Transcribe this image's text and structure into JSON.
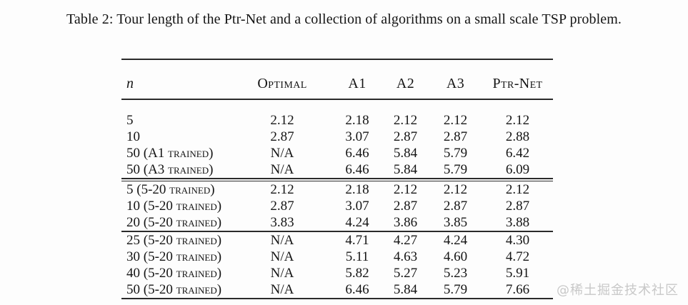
{
  "caption": "Table 2: Tour length of the Ptr-Net and a collection of algorithms on a small scale TSP problem.",
  "watermark": "@稀土掘金技术社区",
  "table": {
    "columns": [
      "n",
      "Optimal",
      "A1",
      "A2",
      "A3",
      "Ptr-Net"
    ],
    "groups": [
      {
        "rows": [
          {
            "label": "5",
            "values": [
              "2.12",
              "2.18",
              "2.12",
              "2.12",
              "2.12"
            ]
          },
          {
            "label": "10",
            "values": [
              "2.87",
              "3.07",
              "2.87",
              "2.87",
              "2.88"
            ]
          },
          {
            "label": "50 (A1 trained)",
            "values": [
              "N/A",
              "6.46",
              "5.84",
              "5.79",
              "6.42"
            ]
          },
          {
            "label": "50 (A3 trained)",
            "values": [
              "N/A",
              "6.46",
              "5.84",
              "5.79",
              "6.09"
            ]
          }
        ]
      },
      {
        "rows": [
          {
            "label": "5 (5-20 trained)",
            "values": [
              "2.12",
              "2.18",
              "2.12",
              "2.12",
              "2.12"
            ]
          },
          {
            "label": "10 (5-20 trained)",
            "values": [
              "2.87",
              "3.07",
              "2.87",
              "2.87",
              "2.87"
            ]
          },
          {
            "label": "20 (5-20 trained)",
            "values": [
              "3.83",
              "4.24",
              "3.86",
              "3.85",
              "3.88"
            ]
          }
        ]
      },
      {
        "rows": [
          {
            "label": "25 (5-20 trained)",
            "values": [
              "N/A",
              "4.71",
              "4.27",
              "4.24",
              "4.30"
            ]
          },
          {
            "label": "30 (5-20 trained)",
            "values": [
              "N/A",
              "5.11",
              "4.63",
              "4.60",
              "4.72"
            ]
          },
          {
            "label": "40 (5-20 trained)",
            "values": [
              "N/A",
              "5.82",
              "5.27",
              "5.23",
              "5.91"
            ]
          },
          {
            "label": "50 (5-20 trained)",
            "values": [
              "N/A",
              "6.46",
              "5.84",
              "5.79",
              "7.66"
            ]
          }
        ]
      }
    ]
  }
}
